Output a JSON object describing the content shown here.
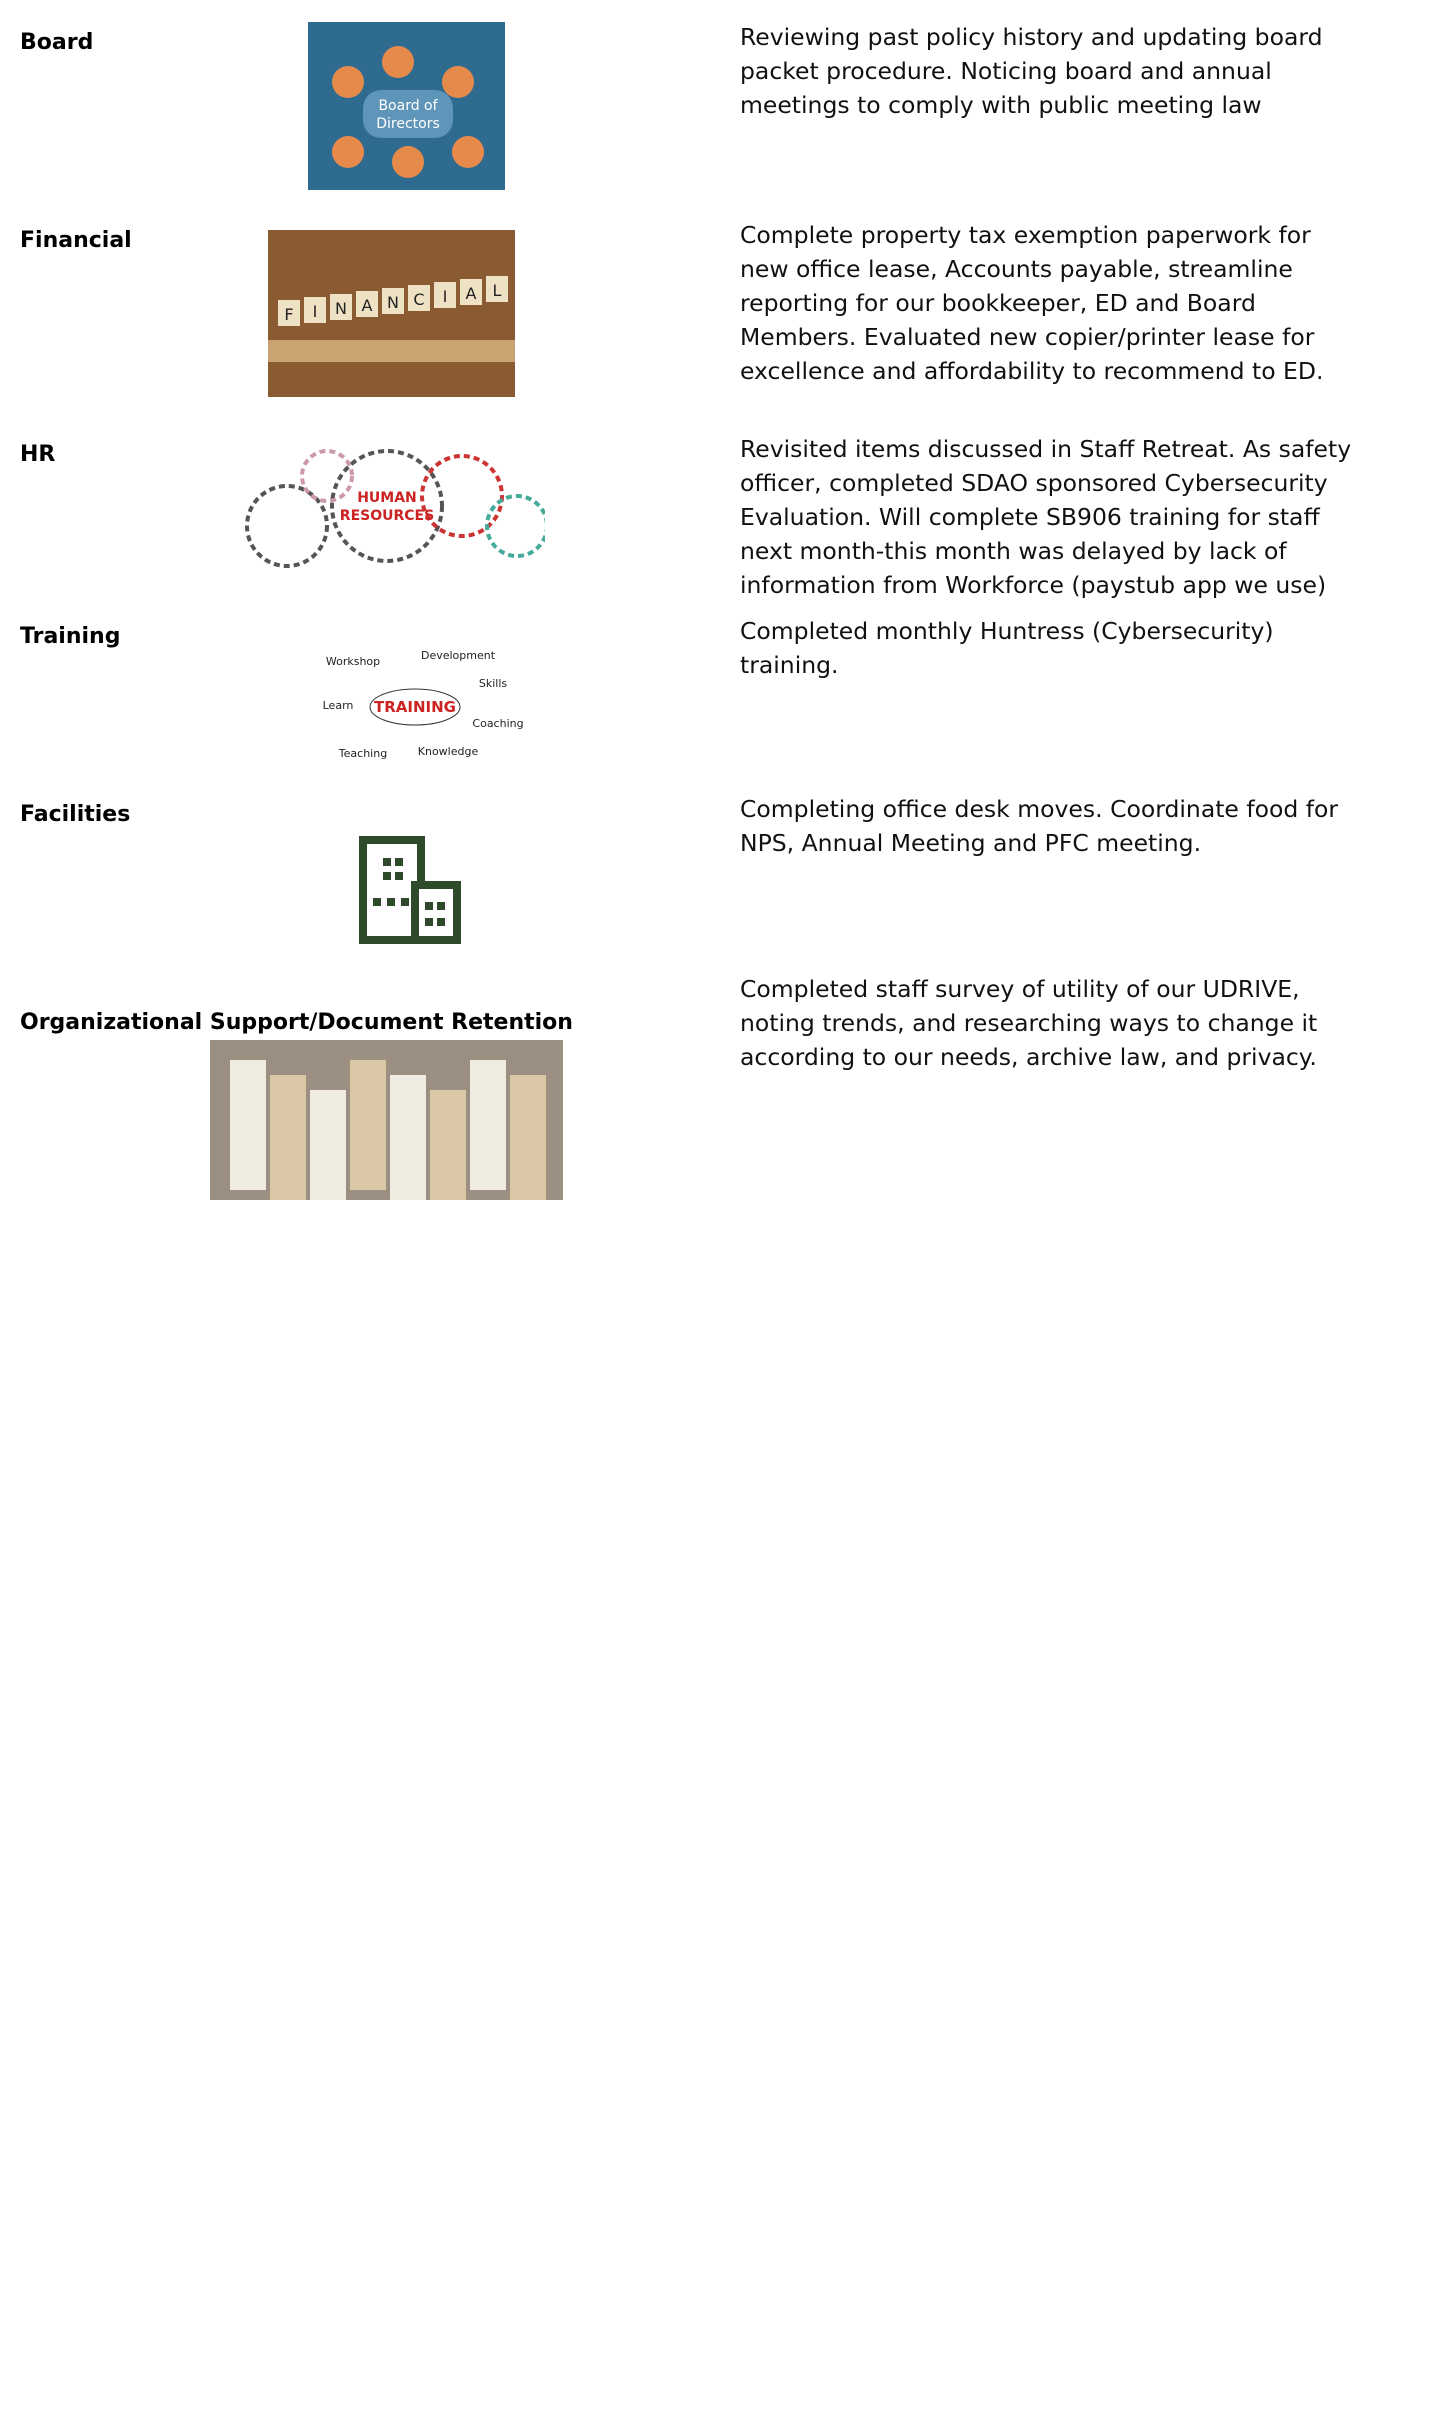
{
  "rows": [
    {
      "label": "Board",
      "image_text": [
        "Board of",
        "Directors"
      ],
      "description": [
        "Reviewing past policy history and updating board",
        "packet procedure. Noticing board and annual",
        "meetings to comply with public meeting law"
      ]
    },
    {
      "label": "Financial",
      "image_text": [
        "F",
        "I",
        "N",
        "A",
        "N",
        "C",
        "I",
        "A",
        "L"
      ],
      "description": [
        "Complete property tax exemption paperwork for",
        "new office lease, Accounts payable, streamline",
        "reporting for our bookkeeper, ED and Board",
        "Members. Evaluated new copier/printer lease for",
        "excellence and affordability to recommend to ED."
      ]
    },
    {
      "label": "HR",
      "image_text": [
        "HUMAN",
        "RESOURCES"
      ],
      "description": [
        "Revisited items discussed in Staff Retreat. As safety",
        "officer, completed SDAO sponsored Cybersecurity",
        "Evaluation. Will complete SB906 training for staff",
        "next month-this month was delayed by lack of",
        "information from Workforce (paystub app we use)"
      ]
    },
    {
      "label": "Training",
      "image_text": [
        "TRAINING",
        "Workshop",
        "Development",
        "Skills",
        "Learn",
        "Coaching",
        "Teaching",
        "Knowledge"
      ],
      "description": [
        "Completed monthly Huntress (Cybersecurity)",
        "training."
      ]
    },
    {
      "label": "Facilities",
      "image_text": [],
      "description": [
        "Completing office desk moves. Coordinate food for",
        "NPS, Annual Meeting and PFC meeting."
      ]
    },
    {
      "label": "Organizational Support/Document Retention",
      "image_text": [],
      "description": [
        "Completed staff survey of utility of our UDRIVE,",
        "noting trends, and researching ways to change it",
        "according to our needs, archive law, and privacy."
      ]
    }
  ]
}
